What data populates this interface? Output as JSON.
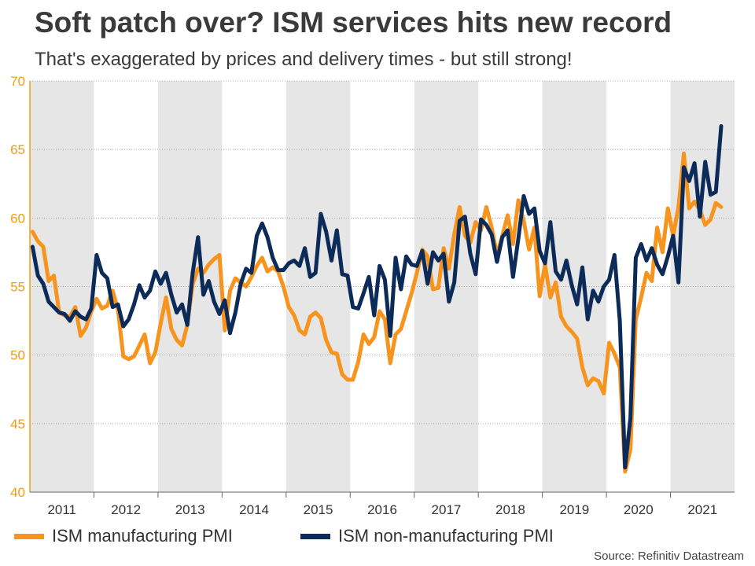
{
  "title": "Soft patch over? ISM services hits new record",
  "subtitle": "That's exaggerated by prices and delivery times - but still strong!",
  "source": "Source: Refinitiv Datastream",
  "chart_data": {
    "type": "line",
    "x_start": "2011-01",
    "x_labels": [
      "2011",
      "2012",
      "2013",
      "2014",
      "2015",
      "2016",
      "2017",
      "2018",
      "2019",
      "2020",
      "2021"
    ],
    "ylim": [
      40,
      70
    ],
    "yticks": [
      40,
      45,
      50,
      55,
      60,
      65,
      70
    ],
    "shaded_years": [
      "2011",
      "2013",
      "2015",
      "2017",
      "2019",
      "2021"
    ],
    "grid": "horizontal dotted",
    "legend_position": "bottom",
    "series": [
      {
        "name": "ISM manufacturing PMI",
        "color": "#f7941d",
        "values": [
          59.0,
          58.3,
          57.9,
          55.4,
          55.8,
          53.1,
          52.9,
          52.8,
          53.5,
          51.4,
          52.0,
          53.2,
          54.1,
          53.4,
          53.6,
          54.7,
          53.3,
          49.9,
          49.7,
          49.9,
          50.7,
          51.5,
          49.4,
          50.2,
          52.3,
          54.2,
          51.9,
          51.1,
          50.7,
          52.2,
          55.2,
          56.3,
          56.0,
          56.6,
          57.0,
          57.3,
          51.8,
          54.7,
          55.6,
          55.3,
          55.0,
          55.7,
          56.5,
          57.1,
          56.1,
          56.4,
          56.1,
          55.0,
          53.5,
          52.9,
          51.8,
          51.5,
          52.8,
          53.1,
          52.7,
          51.1,
          50.2,
          50.1,
          48.6,
          48.2,
          48.2,
          49.5,
          51.5,
          50.8,
          51.3,
          53.2,
          52.6,
          49.4,
          51.5,
          51.9,
          53.2,
          54.5,
          56.0,
          57.7,
          57.2,
          54.8,
          54.9,
          57.8,
          56.3,
          58.8,
          60.8,
          58.7,
          58.2,
          59.7,
          59.1,
          60.8,
          59.3,
          57.3,
          58.7,
          60.2,
          58.1,
          61.3,
          59.8,
          57.7,
          59.3,
          54.3,
          56.6,
          54.2,
          55.3,
          52.8,
          52.1,
          51.7,
          51.2,
          49.1,
          47.8,
          48.3,
          48.1,
          47.2,
          50.9,
          50.1,
          49.1,
          41.5,
          43.1,
          52.6,
          54.2,
          56.0,
          55.4,
          59.3,
          57.5,
          60.7,
          58.7,
          60.8,
          64.7,
          60.7,
          61.2,
          60.6,
          59.5,
          59.9,
          61.1,
          60.8
        ]
      },
      {
        "name": "ISM non-manufacturing PMI",
        "color": "#0c2b59",
        "values": [
          57.9,
          55.8,
          55.2,
          53.9,
          53.5,
          53.1,
          53.0,
          52.5,
          53.2,
          52.8,
          52.6,
          53.4,
          57.3,
          56.0,
          55.6,
          53.5,
          53.7,
          52.1,
          52.6,
          53.7,
          55.1,
          54.2,
          54.7,
          56.1,
          55.2,
          56.0,
          54.4,
          53.1,
          53.7,
          52.2,
          56.0,
          58.6,
          54.4,
          55.4,
          53.9,
          53.0,
          54.0,
          51.6,
          53.1,
          55.2,
          56.3,
          56.0,
          58.7,
          59.6,
          58.6,
          57.1,
          56.2,
          56.2,
          56.7,
          56.9,
          56.5,
          57.8,
          55.7,
          56.0,
          60.3,
          59.0,
          56.9,
          59.1,
          55.9,
          55.8,
          53.5,
          53.4,
          54.5,
          55.7,
          52.9,
          56.5,
          55.5,
          51.4,
          57.1,
          54.8,
          57.2,
          56.6,
          56.5,
          57.6,
          55.2,
          57.5,
          56.9,
          57.4,
          53.9,
          55.3,
          59.8,
          60.1,
          57.4,
          55.9,
          59.9,
          59.5,
          58.8,
          56.8,
          58.6,
          59.1,
          55.7,
          58.5,
          61.6,
          60.3,
          60.7,
          57.6,
          56.7,
          59.7,
          56.1,
          55.5,
          56.9,
          55.1,
          53.7,
          56.4,
          52.6,
          54.7,
          53.9,
          55.0,
          55.5,
          57.3,
          52.5,
          41.8,
          45.4,
          57.1,
          58.1,
          56.9,
          57.8,
          56.6,
          55.9,
          57.2,
          58.7,
          55.3,
          63.7,
          62.7,
          64.0,
          60.1,
          64.1,
          61.7,
          61.9,
          66.7
        ]
      }
    ]
  }
}
